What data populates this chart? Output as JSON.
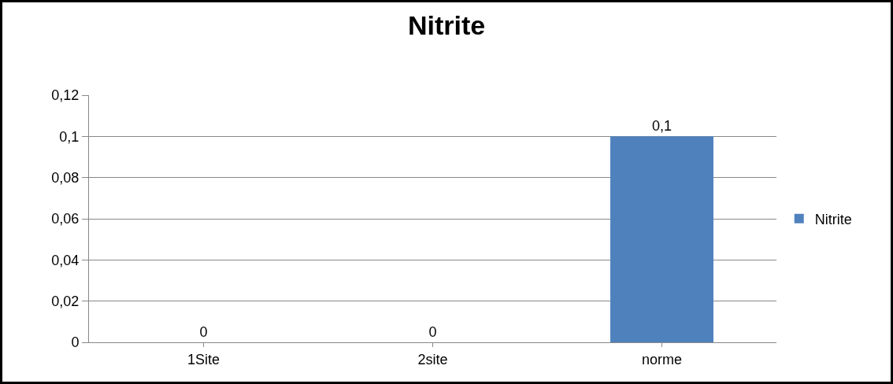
{
  "chart_data": {
    "type": "bar",
    "title": "Nitrite",
    "categories": [
      "1Site",
      "2site",
      "norme"
    ],
    "series": [
      {
        "name": "Nitrite",
        "color": "#4f81bd",
        "values": [
          0,
          0,
          0.1
        ],
        "value_labels": [
          "0",
          "0",
          "0,1"
        ]
      }
    ],
    "ylim": [
      0,
      0.12
    ],
    "yticks": [
      {
        "value": 0,
        "label": "0"
      },
      {
        "value": 0.02,
        "label": "0,02"
      },
      {
        "value": 0.04,
        "label": "0,04"
      },
      {
        "value": 0.06,
        "label": "0,06"
      },
      {
        "value": 0.08,
        "label": "0,08"
      },
      {
        "value": 0.1,
        "label": "0,1"
      },
      {
        "value": 0.12,
        "label": "0,12"
      }
    ],
    "grid": "y",
    "legend": "right"
  }
}
